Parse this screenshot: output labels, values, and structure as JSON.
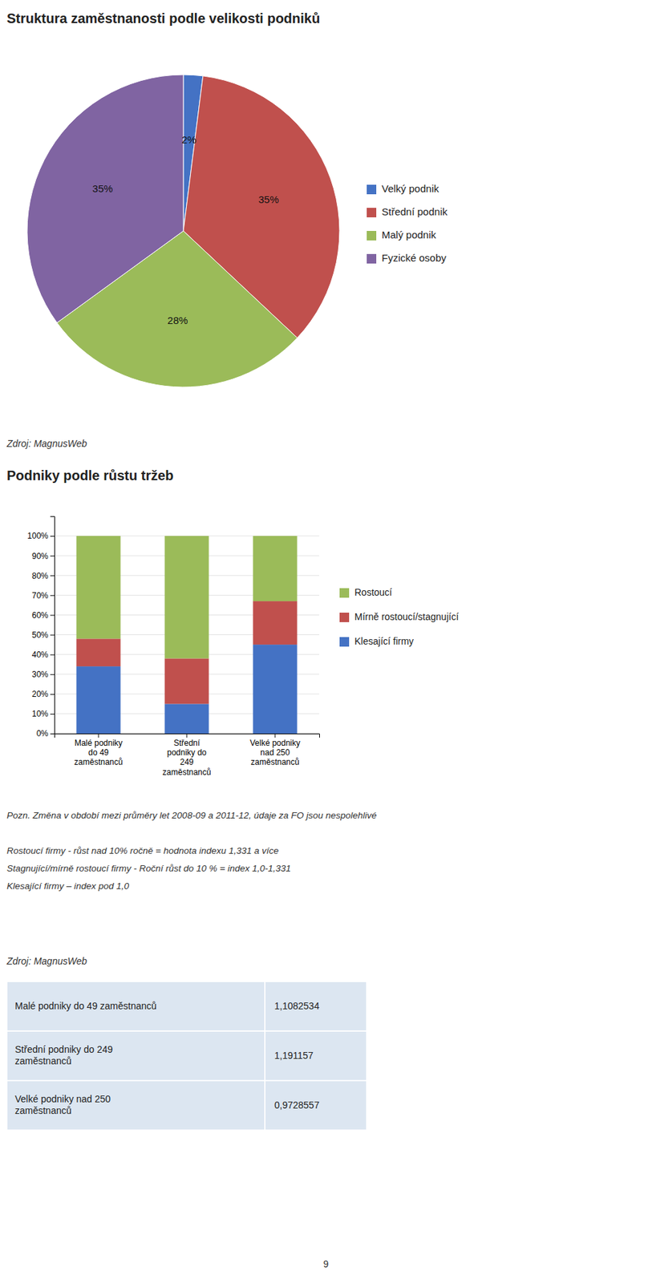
{
  "chart_data": [
    {
      "type": "pie",
      "title": "Struktura zaměstnanosti podle velikosti podniků",
      "categories": [
        "Velký podnik",
        "Střední podnik",
        "Malý podnik",
        "Fyzické osoby"
      ],
      "values": [
        2,
        35,
        28,
        35
      ],
      "value_labels": [
        "2%",
        "35%",
        "28%",
        "35%"
      ],
      "colors": [
        "#4472C4",
        "#C0504D",
        "#9BBB59",
        "#8064A2"
      ],
      "data_labels": true,
      "legend": "right",
      "annotations": [
        "Zdroj: MagnusWeb"
      ]
    },
    {
      "type": "bar",
      "stacked": true,
      "title": "Podniky podle růstu tržeb",
      "categories": [
        "Malé podniky\ndo 49\nzaměstnanců",
        "Střední\npodniky do\n249\nzaměstnanců",
        "Velké podniky\nnad 250\nzaměstnanců"
      ],
      "series": [
        {
          "name": "Klesající firmy",
          "color": "#4472C4",
          "values": [
            34,
            15,
            45
          ]
        },
        {
          "name": "Mírně rostoucí/stagnující",
          "color": "#C0504D",
          "values": [
            14,
            23,
            22
          ]
        },
        {
          "name": "Rostoucí",
          "color": "#9BBB59",
          "values": [
            52,
            62,
            33
          ]
        }
      ],
      "ylim": [
        0,
        110
      ],
      "yticks": [
        {
          "value": 0,
          "label": "0%"
        },
        {
          "value": 10,
          "label": "10%"
        },
        {
          "value": 20,
          "label": "20%"
        },
        {
          "value": 30,
          "label": "30%"
        },
        {
          "value": 40,
          "label": "40%"
        },
        {
          "value": 50,
          "label": "50%"
        },
        {
          "value": 60,
          "label": "60%"
        },
        {
          "value": 70,
          "label": "70%"
        },
        {
          "value": 80,
          "label": "80%"
        },
        {
          "value": 90,
          "label": "90%"
        },
        {
          "value": 100,
          "label": "100%"
        }
      ],
      "grid": true,
      "legend": "right",
      "annotations": [
        "Pozn. Změna v období mezi průměry let 2008-09 a 2011-12, údaje za FO jsou nespolehlivé",
        "Rostoucí firmy - růst nad 10% ročně = hodnota indexu 1,331 a více",
        "Stagnující/mírně rostoucí firmy - Roční růst do 10 % = index 1,0-1,331",
        "Klesající firmy – index pod 1,0",
        "Zdroj: MagnusWeb"
      ]
    },
    {
      "type": "table",
      "rows": [
        [
          "Malé podniky do 49 zaměstnanců",
          "1,1082534"
        ],
        [
          "Střední podniky do 249\nzaměstnanců",
          "1,191157"
        ],
        [
          "Velké podniky nad 250\nzaměstnanců",
          "0,9728557"
        ]
      ]
    }
  ],
  "page_number": "9"
}
